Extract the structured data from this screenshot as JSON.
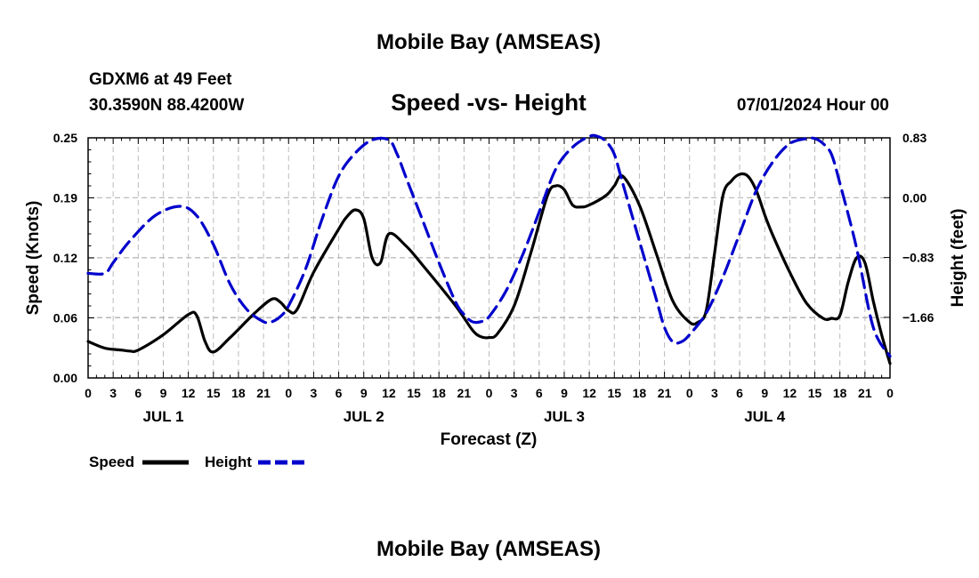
{
  "header": {
    "title": "Mobile Bay (AMSEAS)",
    "station": "GDXM6 at 49 Feet",
    "coords": "30.3590N  88.4200W",
    "chart_title": "Speed -vs- Height",
    "datetime": "07/01/2024 Hour 00",
    "footer_title": "Mobile Bay (AMSEAS)"
  },
  "legend": {
    "speed_label": "Speed",
    "height_label": "Height"
  },
  "chart_data": {
    "type": "line",
    "title": "Speed -vs- Height",
    "xlabel": "Forecast (Z)",
    "ylabel_left": "Speed (Knots)",
    "ylabel_right": "Height (feet)",
    "x_range_hours": [
      0,
      96
    ],
    "ylim_left": [
      0,
      0.25
    ],
    "ylim_right": [
      -2.5,
      0.83
    ],
    "left_ticks": [
      "0.00",
      "0.06",
      "0.12",
      "0.19",
      "0.25"
    ],
    "left_tick_values": [
      0,
      0.0625,
      0.125,
      0.1875,
      0.25
    ],
    "right_ticks": [
      "0.83",
      "0.00",
      "−0.83",
      "−1.66"
    ],
    "right_tick_values": [
      0.83,
      0,
      -0.83,
      -1.66
    ],
    "x_tick_labels": [
      "0",
      "3",
      "6",
      "9",
      "12",
      "15",
      "18",
      "21",
      "0",
      "3",
      "6",
      "9",
      "12",
      "15",
      "18",
      "21",
      "0",
      "3",
      "6",
      "9",
      "12",
      "15",
      "18",
      "21",
      "0",
      "3",
      "6",
      "9",
      "12",
      "15",
      "18",
      "21",
      "0"
    ],
    "day_labels": [
      {
        "label": "JUL 1",
        "hour": 9
      },
      {
        "label": "JUL 2",
        "hour": 33
      },
      {
        "label": "JUL 3",
        "hour": 57
      },
      {
        "label": "JUL 4",
        "hour": 81
      }
    ],
    "grid": true,
    "series": [
      {
        "name": "Speed",
        "color": "#000000",
        "axis": "left",
        "x": [
          0,
          2,
          4,
          5,
          6,
          9,
          12,
          13,
          14,
          15,
          17,
          20,
          22,
          23,
          24,
          25,
          27,
          30,
          31,
          32,
          33,
          34,
          35,
          36,
          38,
          40,
          44,
          46,
          47,
          48,
          49,
          51,
          53,
          55,
          56,
          57,
          58,
          59,
          60,
          62,
          63,
          64,
          66,
          68,
          70,
          72,
          73,
          74,
          75,
          76,
          77,
          78,
          79,
          80,
          81,
          82,
          84,
          86,
          88,
          89,
          90,
          91,
          92,
          93,
          94,
          95,
          96
        ],
        "y": [
          0.038,
          0.031,
          0.029,
          0.028,
          0.029,
          0.045,
          0.066,
          0.065,
          0.038,
          0.027,
          0.042,
          0.068,
          0.082,
          0.079,
          0.07,
          0.071,
          0.11,
          0.155,
          0.168,
          0.175,
          0.166,
          0.125,
          0.12,
          0.15,
          0.138,
          0.118,
          0.075,
          0.05,
          0.043,
          0.042,
          0.046,
          0.075,
          0.13,
          0.19,
          0.2,
          0.196,
          0.18,
          0.178,
          0.18,
          0.19,
          0.2,
          0.21,
          0.18,
          0.13,
          0.08,
          0.058,
          0.058,
          0.07,
          0.13,
          0.19,
          0.205,
          0.212,
          0.21,
          0.195,
          0.17,
          0.148,
          0.11,
          0.078,
          0.062,
          0.062,
          0.065,
          0.1,
          0.125,
          0.12,
          0.08,
          0.045,
          0.015
        ]
      },
      {
        "name": "Height",
        "color": "#0000cc",
        "axis": "right",
        "x": [
          0,
          2,
          3,
          5,
          8,
          11,
          13,
          15,
          17,
          19,
          21,
          22,
          23,
          24,
          26,
          28,
          30,
          32,
          34,
          36,
          37,
          38,
          40,
          42,
          44,
          45,
          46,
          47,
          48,
          50,
          52,
          54,
          56,
          58,
          60,
          61,
          62,
          63,
          64,
          66,
          68,
          69,
          70,
          71,
          72,
          74,
          76,
          78,
          80,
          82,
          84,
          86,
          87,
          88,
          89,
          90,
          92,
          94,
          96
        ],
        "y": [
          -1.05,
          -1.05,
          -0.9,
          -0.6,
          -0.25,
          -0.12,
          -0.25,
          -0.65,
          -1.2,
          -1.55,
          -1.72,
          -1.72,
          -1.65,
          -1.5,
          -1.0,
          -0.3,
          0.3,
          0.62,
          0.8,
          0.8,
          0.6,
          0.3,
          -0.3,
          -0.9,
          -1.45,
          -1.62,
          -1.72,
          -1.72,
          -1.65,
          -1.3,
          -0.8,
          -0.2,
          0.4,
          0.7,
          0.85,
          0.85,
          0.78,
          0.6,
          0.2,
          -0.6,
          -1.4,
          -1.8,
          -2.0,
          -2.0,
          -1.9,
          -1.6,
          -1.1,
          -0.5,
          0.1,
          0.5,
          0.75,
          0.82,
          0.82,
          0.75,
          0.6,
          0.2,
          -0.7,
          -1.8,
          -2.2
        ]
      }
    ]
  }
}
